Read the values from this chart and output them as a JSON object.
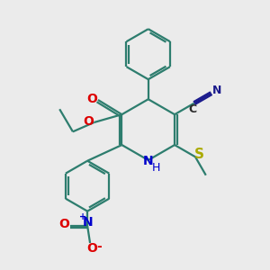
{
  "background_color": "#ebebeb",
  "bond_color": "#2d7d6e",
  "figsize": [
    3.0,
    3.0
  ],
  "dpi": 100,
  "xlim": [
    0,
    10
  ],
  "ylim": [
    0,
    10
  ]
}
